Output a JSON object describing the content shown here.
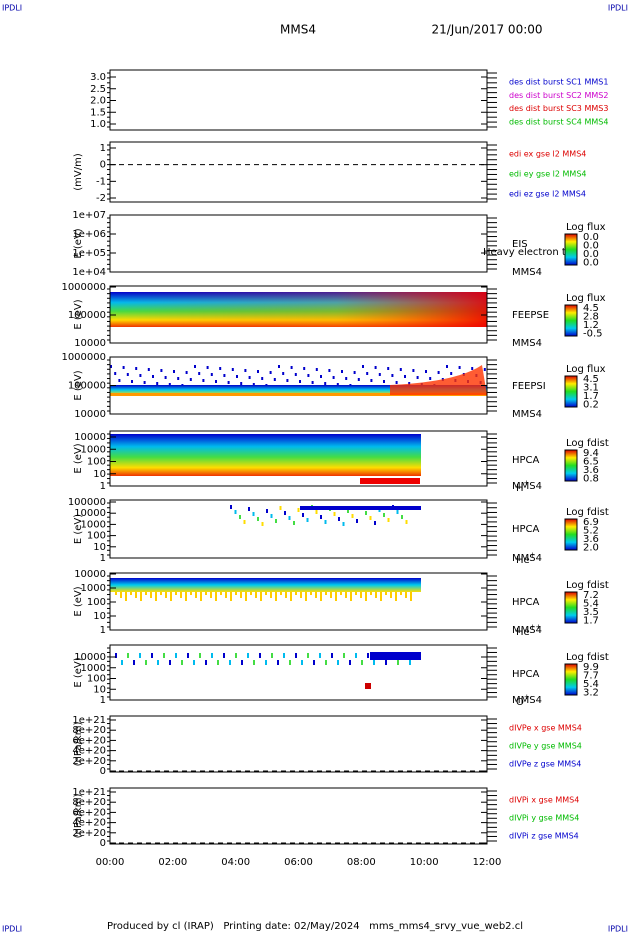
{
  "header": {
    "corner_left": "IPDLI",
    "corner_right": "IPDLI",
    "title": "MMS4",
    "date": "21/Jun/2017 00:00"
  },
  "footer": {
    "text": "Produced by cl (IRAP)   Printing date: 02/May/2024   mms_mms4_srvy_vue_web2.cl",
    "corner_left": "IPDLI",
    "corner_right": "IPDLI"
  },
  "x_ticks": [
    "00:00",
    "02:00",
    "04:00",
    "06:00",
    "08:00",
    "10:00",
    "12:00"
  ],
  "panels": [
    {
      "yticks": [
        "3.0",
        "2.5",
        "2.0",
        "1.5",
        "1.0"
      ],
      "legend": [
        {
          "text": "des dist burst SC1 MMS1",
          "color": "#0000cc"
        },
        {
          "text": "des dist burst SC2 MMS2",
          "color": "#cc00cc"
        },
        {
          "text": "des dist burst SC3 MMS3",
          "color": "#dd0000"
        },
        {
          "text": "des dist burst SC4 MMS4",
          "color": "#00bb00"
        }
      ]
    },
    {
      "ylabel": "(mV/m)",
      "yticks": [
        "1",
        "0",
        "-1",
        "-2"
      ],
      "zero_line": true,
      "legend": [
        {
          "text": "edi ex gse l2 MMS4",
          "color": "#dd0000"
        },
        {
          "text": "edi ey gse l2 MMS4",
          "color": "#00bb00"
        },
        {
          "text": "edi ez gse l2 MMS4",
          "color": "#0000cc"
        }
      ]
    },
    {
      "ylabel": "E (eV)",
      "yticks": [
        "1e+07",
        "1e+06",
        "1e+05",
        "1e+04"
      ],
      "side": [
        "EIS",
        "Heavy electron to",
        "MMS4"
      ],
      "cbar_title": "Log flux",
      "cbar_labels": [
        "0.0",
        "0.0",
        "0.0",
        "0.0"
      ]
    },
    {
      "ylabel": "E (eV)",
      "yticks": [
        "1000000",
        "100000",
        "10000"
      ],
      "side": [
        "FEEPSE",
        "MMS4"
      ],
      "cbar_title": "Log flux",
      "cbar_labels": [
        "4.5",
        "2.8",
        "1.2",
        "-0.5"
      ]
    },
    {
      "ylabel": "E (eV)",
      "yticks": [
        "1000000",
        "100000",
        "10000"
      ],
      "side": [
        "FEEPSI",
        "MMS4"
      ],
      "cbar_title": "Log flux",
      "cbar_labels": [
        "4.5",
        "3.1",
        "1.7",
        "0.2"
      ]
    },
    {
      "ylabel": "E (eV)",
      "yticks": [
        "10000",
        "1000",
        "100",
        "10",
        "1"
      ],
      "side": [
        "HPCA",
        "MMS4"
      ],
      "ion": {
        "base": "H",
        "charge": "+"
      },
      "cbar_title": "Log fdist",
      "cbar_labels": [
        "9.4",
        "6.5",
        "3.6",
        "0.8"
      ]
    },
    {
      "ylabel": "E (eV)",
      "yticks": [
        "100000",
        "10000",
        "1000",
        "100",
        "10",
        "1"
      ],
      "side": [
        "HPCA",
        "MMS4"
      ],
      "ion": {
        "base": "He",
        "charge": "+"
      },
      "cbar_title": "Log fdist",
      "cbar_labels": [
        "6.9",
        "5.2",
        "3.6",
        "2.0"
      ]
    },
    {
      "ylabel": "E (eV)",
      "yticks": [
        "10000",
        "1000",
        "100",
        "10",
        "1"
      ],
      "side": [
        "HPCA",
        "MMS4"
      ],
      "ion": {
        "base": "He",
        "charge": "++"
      },
      "cbar_title": "Log fdist",
      "cbar_labels": [
        "7.2",
        "5.4",
        "3.5",
        "1.7"
      ]
    },
    {
      "ylabel": "E (eV)",
      "yticks": [
        "10000",
        "1000",
        "100",
        "10",
        "1"
      ],
      "side": [
        "HPCA",
        "MMS4"
      ],
      "ion": {
        "base": "O",
        "charge": "+"
      },
      "cbar_title": "Log fdist",
      "cbar_labels": [
        "9.9",
        "7.7",
        "5.4",
        "3.2"
      ]
    },
    {
      "ylabel": "(nPa/km)",
      "yticks": [
        "1e+21",
        "8e+20",
        "6e+20",
        "4e+20",
        "2e+20",
        "0"
      ],
      "zero_line": true,
      "legend": [
        {
          "text": "dIVPe x gse MMS4",
          "color": "#dd0000"
        },
        {
          "text": "dIVPe y gse MMS4",
          "color": "#00bb00"
        },
        {
          "text": "dIVPe z gse MMS4",
          "color": "#0000cc"
        }
      ]
    },
    {
      "ylabel": "(nPa/km)",
      "yticks": [
        "1e+21",
        "8e+20",
        "6e+20",
        "4e+20",
        "2e+20",
        "0"
      ],
      "zero_line": true,
      "legend": [
        {
          "text": "dIVPi x gse MMS4",
          "color": "#dd0000"
        },
        {
          "text": "dIVPi y gse MMS4",
          "color": "#00bb00"
        },
        {
          "text": "dIVPi z gse MMS4",
          "color": "#0000cc"
        }
      ]
    }
  ]
}
